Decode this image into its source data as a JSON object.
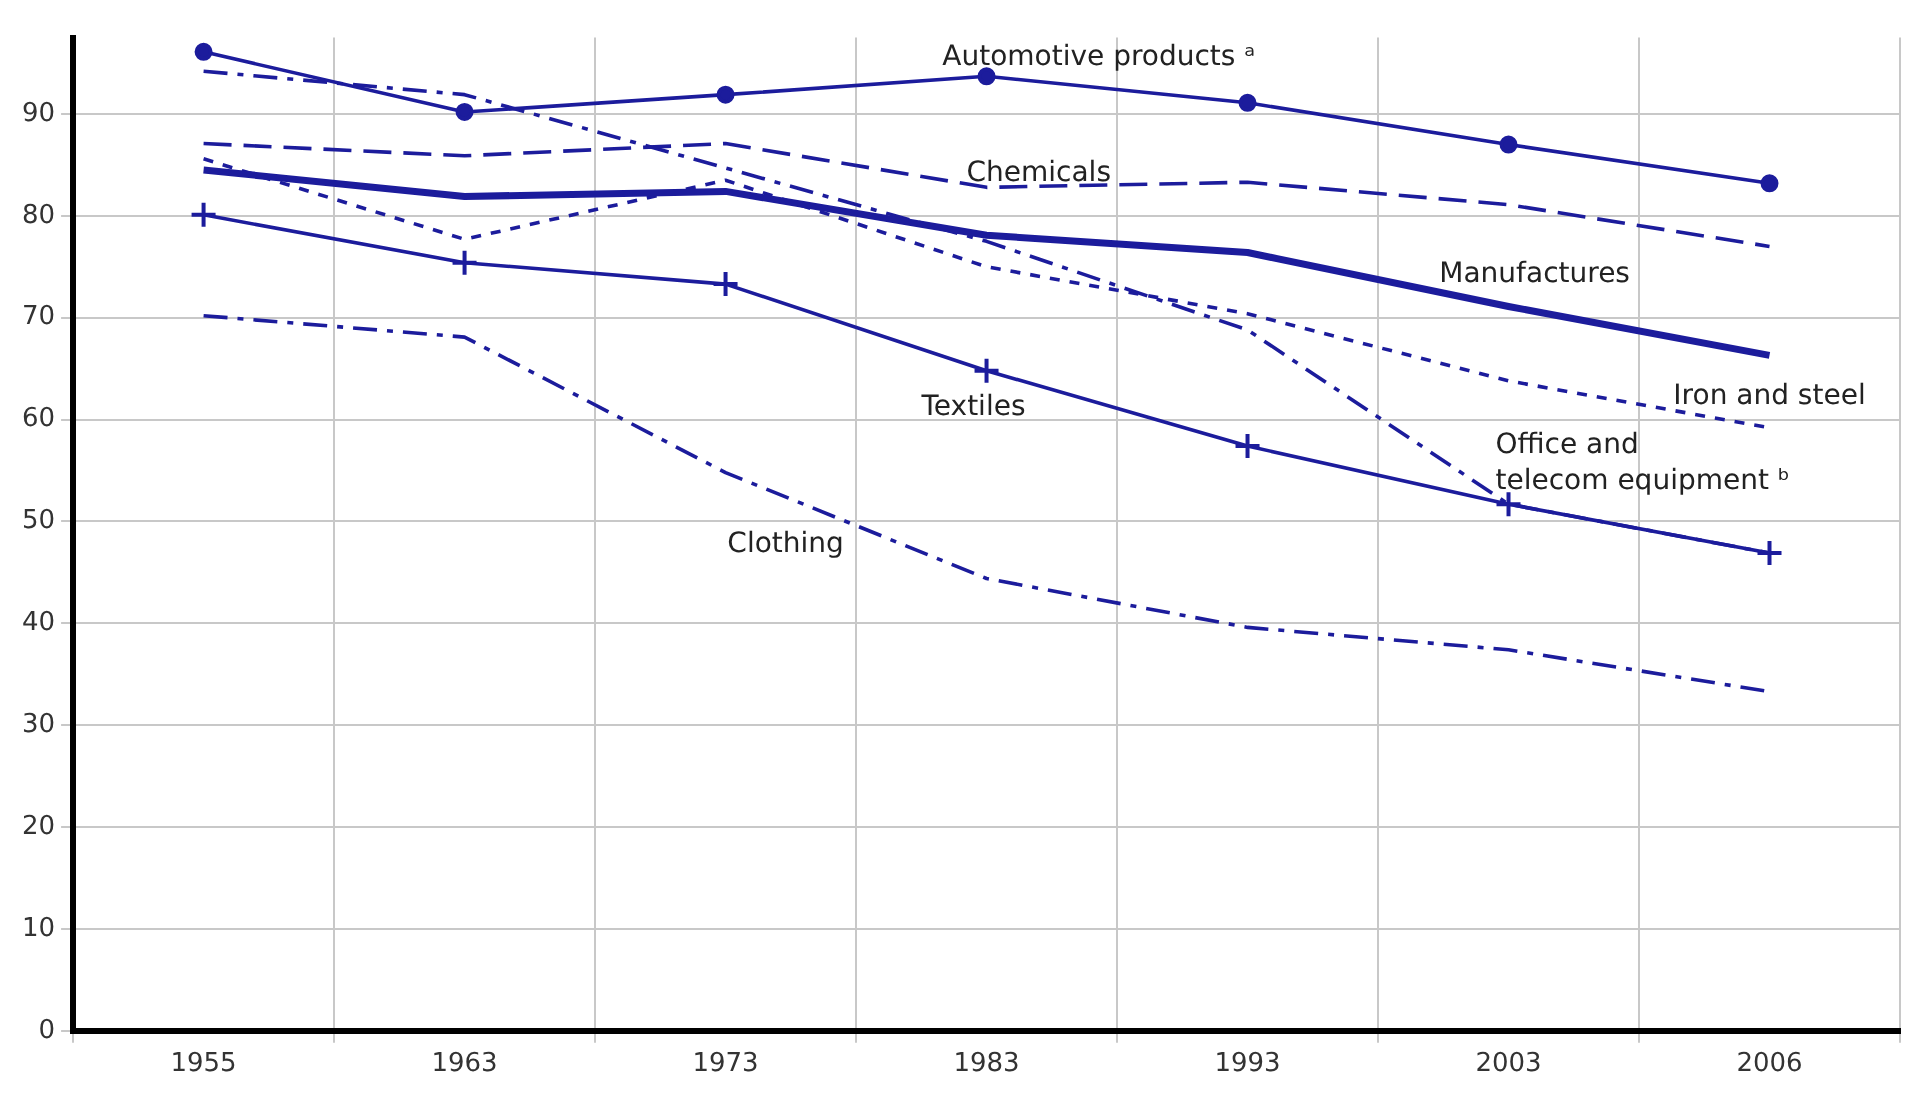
{
  "chart_data": {
    "type": "line",
    "categories": [
      "1955",
      "1963",
      "1973",
      "1983",
      "1993",
      "2003",
      "2006"
    ],
    "ylim": [
      0,
      97.5
    ],
    "yticks": [
      0,
      10,
      20,
      30,
      40,
      50,
      60,
      70,
      80,
      90
    ],
    "grid": true,
    "legend": false,
    "series": [
      {
        "name": "Automotive products ᵃ",
        "color": "#1c1c9c",
        "line_style": "solid",
        "marker": "circle",
        "values": [
          96.1,
          90.2,
          91.9,
          93.7,
          91.1,
          87.0,
          83.2
        ]
      },
      {
        "name": "Chemicals",
        "color": "#1c1c9c",
        "line_style": "dashed",
        "marker": "none",
        "values": [
          87.1,
          85.9,
          87.1,
          82.8,
          83.3,
          81.1,
          77.0
        ]
      },
      {
        "name": "Manufactures",
        "color": "#1c1c9c",
        "line_style": "solid",
        "marker": "none",
        "values": [
          84.5,
          81.9,
          82.4,
          78.1,
          76.4,
          71.1,
          66.3
        ]
      },
      {
        "name": "Iron and steel",
        "color": "#1c1c9c",
        "line_style": "dotted",
        "marker": "none",
        "values": [
          85.6,
          77.7,
          83.5,
          75.0,
          70.4,
          63.8,
          59.2
        ]
      },
      {
        "name": "Office and telecom equipment ᵇ",
        "color": "#1c1c9c",
        "line_style": "dashdot",
        "marker": "none",
        "values": [
          94.2,
          91.9,
          84.7,
          77.5,
          68.8,
          51.7,
          46.9
        ]
      },
      {
        "name": "Textiles",
        "color": "#1c1c9c",
        "line_style": "solid",
        "marker": "cross",
        "values": [
          80.1,
          75.4,
          73.3,
          64.8,
          57.4,
          51.7,
          46.9
        ]
      },
      {
        "name": "Clothing",
        "color": "#1c1c9c",
        "line_style": "dashdot",
        "marker": "none",
        "values": [
          70.2,
          68.1,
          54.8,
          44.4,
          39.6,
          37.4,
          33.3
        ]
      }
    ]
  }
}
